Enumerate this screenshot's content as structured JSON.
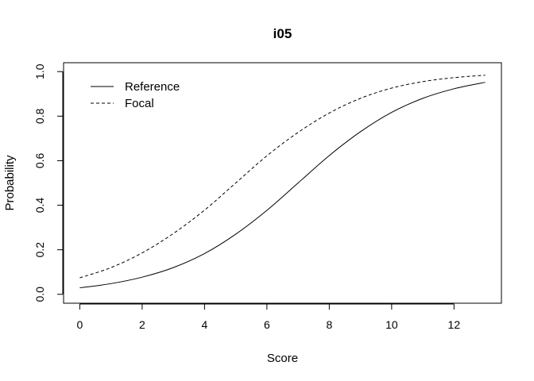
{
  "chart_data": {
    "type": "line",
    "title": "i05",
    "xlabel": "Score",
    "ylabel": "Probability",
    "xlim": [
      -0.52,
      13.52
    ],
    "ylim": [
      -0.04,
      1.04
    ],
    "xticks": [
      0,
      2,
      4,
      6,
      8,
      10,
      12
    ],
    "yticks": [
      0.0,
      0.2,
      0.4,
      0.6,
      0.8,
      1.0
    ],
    "xtick_labels": [
      "0",
      "2",
      "4",
      "6",
      "8",
      "10",
      "12"
    ],
    "ytick_labels": [
      "0.0",
      "0.2",
      "0.4",
      "0.6",
      "0.8",
      "1.0"
    ],
    "grid": false,
    "legend_position": "top-left",
    "x": [
      0,
      1,
      2,
      3,
      4,
      5,
      6,
      7,
      8,
      9,
      10,
      11,
      12,
      13
    ],
    "series": [
      {
        "name": "Reference",
        "linestyle": "solid",
        "color": "#000000",
        "values": [
          0.029,
          0.048,
          0.077,
          0.12,
          0.183,
          0.27,
          0.377,
          0.5,
          0.623,
          0.73,
          0.817,
          0.88,
          0.923,
          0.952
        ]
      },
      {
        "name": "Focal",
        "linestyle": "dashed",
        "color": "#000000",
        "values": [
          0.074,
          0.12,
          0.186,
          0.273,
          0.378,
          0.5,
          0.622,
          0.727,
          0.814,
          0.88,
          0.926,
          0.955,
          0.973,
          0.984
        ]
      }
    ]
  }
}
